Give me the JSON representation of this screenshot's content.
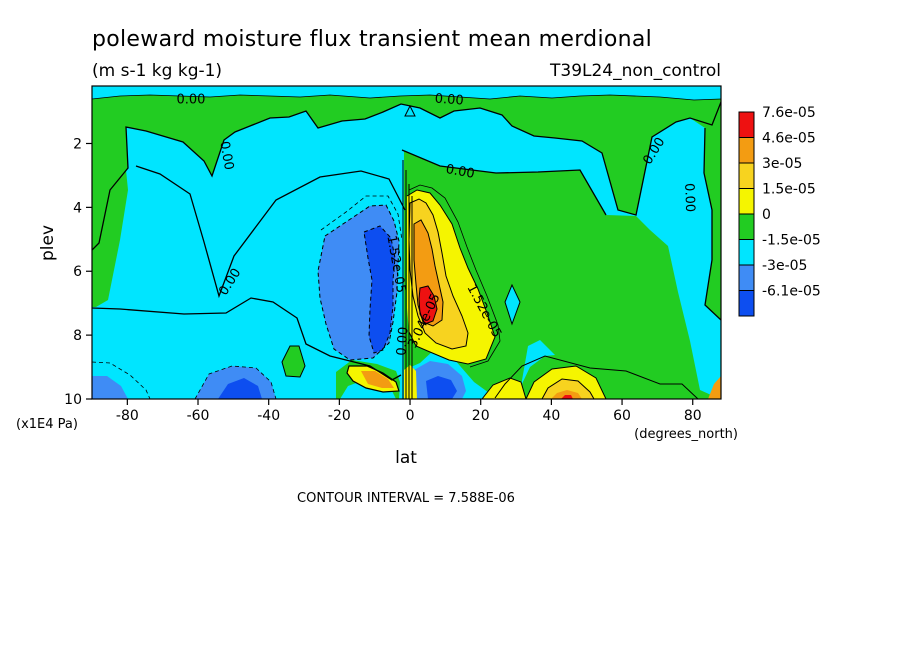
{
  "chart_data": {
    "type": "contour",
    "title": "poleward moisture flux transient mean merdional",
    "units": "(m s-1 kg kg-1)",
    "dataset": "T39L24_non_control",
    "xlabel": "lat",
    "ylabel": "plev",
    "x_units": "(degrees_north)",
    "y_units": "(x1E4 Pa)",
    "x_ticks": [
      -80,
      -60,
      -40,
      -20,
      0,
      20,
      40,
      60,
      80
    ],
    "x_tick_labels": [
      "-80",
      "-60",
      "-40",
      "-20",
      "0",
      "20",
      "40",
      "60",
      "80"
    ],
    "xlim": [
      -90,
      88
    ],
    "y_ticks": [
      2,
      4,
      6,
      8,
      10
    ],
    "y_tick_labels": [
      "2",
      "4",
      "6",
      "8",
      "10"
    ],
    "ylim": [
      0.2,
      10
    ],
    "y_inverted": true,
    "contour_interval_text": "CONTOUR INTERVAL = 7.588E-06",
    "legend": {
      "placement": "right",
      "levels": [
        {
          "label": "7.6e-05",
          "color": "#ee1111"
        },
        {
          "label": "4.6e-05",
          "color": "#f39c12"
        },
        {
          "label": "3e-05",
          "color": "#f7d31f"
        },
        {
          "label": "1.5e-05",
          "color": "#f5f500"
        },
        {
          "label": "0",
          "color": "#22cc22"
        },
        {
          "label": "-1.5e-05",
          "color": "#00e5ff"
        },
        {
          "label": "-3e-05",
          "color": "#3f8cf5"
        },
        {
          "label": "-6.1e-05",
          "color": "#0d4ef0"
        }
      ]
    },
    "contour_labels": [
      {
        "text": "0.00",
        "lat": -62,
        "plev": 0.75
      },
      {
        "text": "0.00",
        "lat": 11,
        "plev": 0.75
      },
      {
        "text": "0.00",
        "lat": -53,
        "plev": 2.4
      },
      {
        "text": "0.00",
        "lat": 14,
        "plev": 3.0
      },
      {
        "text": "0.00",
        "lat": 70,
        "plev": 2.3
      },
      {
        "text": "0.00",
        "lat": 78,
        "plev": 3.7
      },
      {
        "text": "0.00",
        "lat": -50,
        "plev": 6.4
      },
      {
        "text": "1.52e-05",
        "lat": -5,
        "plev": 5.8
      },
      {
        "text": "1.52e-05",
        "lat": 20,
        "plev": 7.3
      },
      {
        "text": "3.04e-05",
        "lat": 5,
        "plev": 7.6
      },
      {
        "text": "0.00",
        "lat": -1,
        "plev": 8.2
      }
    ]
  }
}
